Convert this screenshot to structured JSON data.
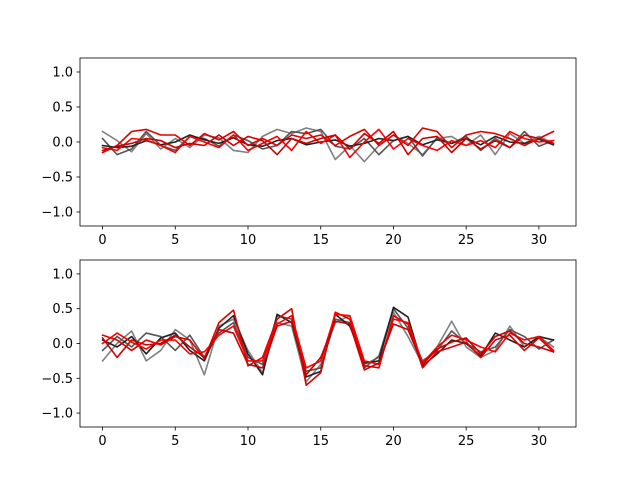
{
  "chart_data": [
    {
      "type": "line",
      "title": "",
      "xlabel": "",
      "ylabel": "",
      "xlim": [
        -1.55,
        32.55
      ],
      "ylim": [
        -1.2,
        1.2
      ],
      "xticks": [
        0,
        5,
        10,
        15,
        20,
        25,
        30
      ],
      "yticks": [
        1.0,
        0.5,
        0.0,
        -0.5,
        -1.0
      ],
      "ytick_labels": [
        "1.0",
        "0.5",
        "0.0",
        "−0.5",
        "−1.0"
      ],
      "grid": false,
      "x": [
        0,
        1,
        2,
        3,
        4,
        5,
        6,
        7,
        8,
        9,
        10,
        11,
        12,
        13,
        14,
        15,
        16,
        17,
        18,
        19,
        20,
        21,
        22,
        23,
        24,
        25,
        26,
        27,
        28,
        29,
        30,
        31
      ],
      "series": [
        {
          "color": "#808080",
          "values": [
            0.15,
            0.02,
            -0.14,
            0.12,
            -0.1,
            0.05,
            -0.08,
            0.1,
            0.06,
            -0.12,
            -0.15,
            0.08,
            0.18,
            0.12,
            0.2,
            0.15,
            -0.25,
            -0.05,
            -0.28,
            -0.05,
            0.1,
            -0.02,
            -0.18,
            0.05,
            0.08,
            -0.05,
            0.1,
            -0.18,
            0.12,
            -0.02,
            0.08,
            -0.02
          ]
        },
        {
          "color": "#555555",
          "values": [
            0.05,
            -0.18,
            -0.1,
            0.15,
            -0.05,
            -0.12,
            0.08,
            0.05,
            -0.06,
            0.1,
            0.02,
            -0.1,
            -0.05,
            0.15,
            0.12,
            0.18,
            -0.06,
            -0.1,
            0.05,
            -0.18,
            0.02,
            0.08,
            -0.2,
            0.06,
            -0.02,
            0.08,
            -0.12,
            0.05,
            -0.08,
            0.15,
            -0.06,
            0.02
          ]
        },
        {
          "color": "#222222",
          "values": [
            -0.05,
            -0.08,
            -0.06,
            0.02,
            -0.04,
            0.0,
            0.1,
            0.03,
            -0.02,
            0.06,
            -0.04,
            -0.06,
            0.02,
            0.05,
            -0.04,
            0.0,
            0.03,
            -0.06,
            -0.02,
            0.05,
            0.02,
            0.08,
            -0.04,
            0.03,
            -0.02,
            0.05,
            -0.04,
            0.08,
            0.0,
            -0.02,
            0.04,
            -0.04
          ]
        },
        {
          "color": "#e00000",
          "values": [
            -0.15,
            -0.05,
            0.15,
            0.18,
            0.1,
            0.1,
            -0.05,
            0.12,
            0.03,
            0.15,
            -0.05,
            0.05,
            -0.05,
            0.1,
            0.05,
            0.1,
            -0.05,
            0.08,
            0.18,
            -0.05,
            0.1,
            -0.05,
            0.2,
            0.15,
            -0.08,
            0.1,
            0.15,
            0.12,
            0.05,
            -0.05,
            0.05,
            0.15
          ]
        },
        {
          "color": "#ff0000",
          "values": [
            -0.08,
            -0.12,
            0.05,
            0.03,
            -0.05,
            -0.15,
            0.08,
            0.0,
            -0.08,
            0.1,
            -0.12,
            -0.02,
            0.08,
            -0.12,
            0.15,
            -0.02,
            0.1,
            -0.22,
            0.0,
            0.18,
            -0.1,
            0.05,
            -0.05,
            -0.12,
            0.02,
            -0.05,
            0.02,
            -0.08,
            0.15,
            0.05,
            0.0,
            0.02
          ]
        },
        {
          "color": "#cc0000",
          "values": [
            -0.12,
            -0.06,
            -0.02,
            0.05,
            0.02,
            -0.08,
            -0.02,
            -0.05,
            0.1,
            -0.05,
            0.08,
            0.02,
            -0.18,
            0.05,
            -0.02,
            0.05,
            0.1,
            -0.1,
            0.12,
            -0.02,
            0.15,
            -0.18,
            0.05,
            0.08,
            -0.15,
            0.05,
            -0.1,
            0.02,
            -0.08,
            0.1,
            0.05,
            -0.02
          ]
        }
      ]
    },
    {
      "type": "line",
      "title": "",
      "xlabel": "",
      "ylabel": "",
      "xlim": [
        -1.55,
        32.55
      ],
      "ylim": [
        -1.2,
        1.2
      ],
      "xticks": [
        0,
        5,
        10,
        15,
        20,
        25,
        30
      ],
      "yticks": [
        1.0,
        0.5,
        0.0,
        -0.5,
        -1.0
      ],
      "ytick_labels": [
        "1.0",
        "0.5",
        "0.0",
        "−0.5",
        "−1.0"
      ],
      "grid": false,
      "x": [
        0,
        1,
        2,
        3,
        4,
        5,
        6,
        7,
        8,
        9,
        10,
        11,
        12,
        13,
        14,
        15,
        16,
        17,
        18,
        19,
        20,
        21,
        22,
        23,
        24,
        25,
        26,
        27,
        28,
        29,
        30,
        31
      ],
      "series": [
        {
          "color": "#808080",
          "values": [
            -0.25,
            0.0,
            0.18,
            -0.25,
            -0.1,
            0.2,
            0.05,
            -0.45,
            0.25,
            0.35,
            -0.1,
            -0.42,
            0.3,
            0.25,
            -0.55,
            -0.3,
            0.3,
            0.4,
            -0.3,
            -0.2,
            0.45,
            0.1,
            -0.3,
            -0.05,
            0.32,
            -0.05,
            -0.2,
            -0.1,
            0.25,
            -0.05,
            0.1,
            -0.05
          ]
        },
        {
          "color": "#555555",
          "values": [
            -0.1,
            0.1,
            -0.05,
            0.15,
            0.1,
            -0.1,
            0.12,
            -0.2,
            0.15,
            0.3,
            -0.2,
            -0.3,
            0.4,
            0.35,
            -0.4,
            -0.35,
            0.35,
            0.3,
            -0.35,
            -0.18,
            0.5,
            0.22,
            -0.25,
            -0.1,
            0.18,
            0.0,
            -0.12,
            -0.05,
            0.2,
            0.1,
            -0.08,
            0.05
          ]
        },
        {
          "color": "#222222",
          "values": [
            0.05,
            -0.05,
            0.1,
            -0.15,
            0.08,
            0.15,
            -0.1,
            -0.25,
            0.22,
            0.4,
            -0.15,
            -0.45,
            0.42,
            0.3,
            -0.48,
            -0.4,
            0.42,
            0.25,
            -0.28,
            -0.25,
            0.52,
            0.38,
            -0.32,
            -0.15,
            0.05,
            0.0,
            -0.18,
            0.15,
            0.05,
            -0.05,
            0.1,
            0.05
          ]
        },
        {
          "color": "#e00000",
          "values": [
            0.12,
            0.05,
            -0.1,
            0.05,
            -0.02,
            0.1,
            0.05,
            -0.22,
            0.3,
            0.48,
            -0.32,
            -0.2,
            0.35,
            0.5,
            -0.6,
            -0.42,
            0.45,
            0.35,
            -0.32,
            -0.35,
            0.4,
            0.28,
            -0.35,
            -0.12,
            -0.05,
            0.02,
            -0.2,
            0.05,
            0.12,
            -0.1,
            0.08,
            -0.12
          ]
        },
        {
          "color": "#ff0000",
          "values": [
            0.0,
            0.15,
            0.02,
            -0.08,
            0.05,
            0.05,
            -0.15,
            -0.12,
            0.12,
            0.25,
            -0.25,
            -0.25,
            0.28,
            0.4,
            -0.35,
            -0.25,
            0.42,
            0.4,
            -0.25,
            -0.3,
            0.35,
            0.3,
            -0.28,
            -0.05,
            0.12,
            0.05,
            -0.05,
            -0.12,
            0.15,
            0.05,
            0.1,
            -0.1
          ]
        },
        {
          "color": "#cc0000",
          "values": [
            0.08,
            -0.2,
            0.05,
            -0.02,
            0.0,
            0.12,
            -0.05,
            -0.2,
            0.2,
            0.15,
            -0.3,
            -0.35,
            0.25,
            0.32,
            -0.45,
            -0.2,
            0.32,
            0.28,
            -0.38,
            -0.28,
            0.28,
            0.2,
            -0.3,
            -0.08,
            0.02,
            0.08,
            -0.15,
            0.1,
            0.18,
            0.0,
            -0.05,
            -0.12
          ]
        }
      ]
    }
  ]
}
